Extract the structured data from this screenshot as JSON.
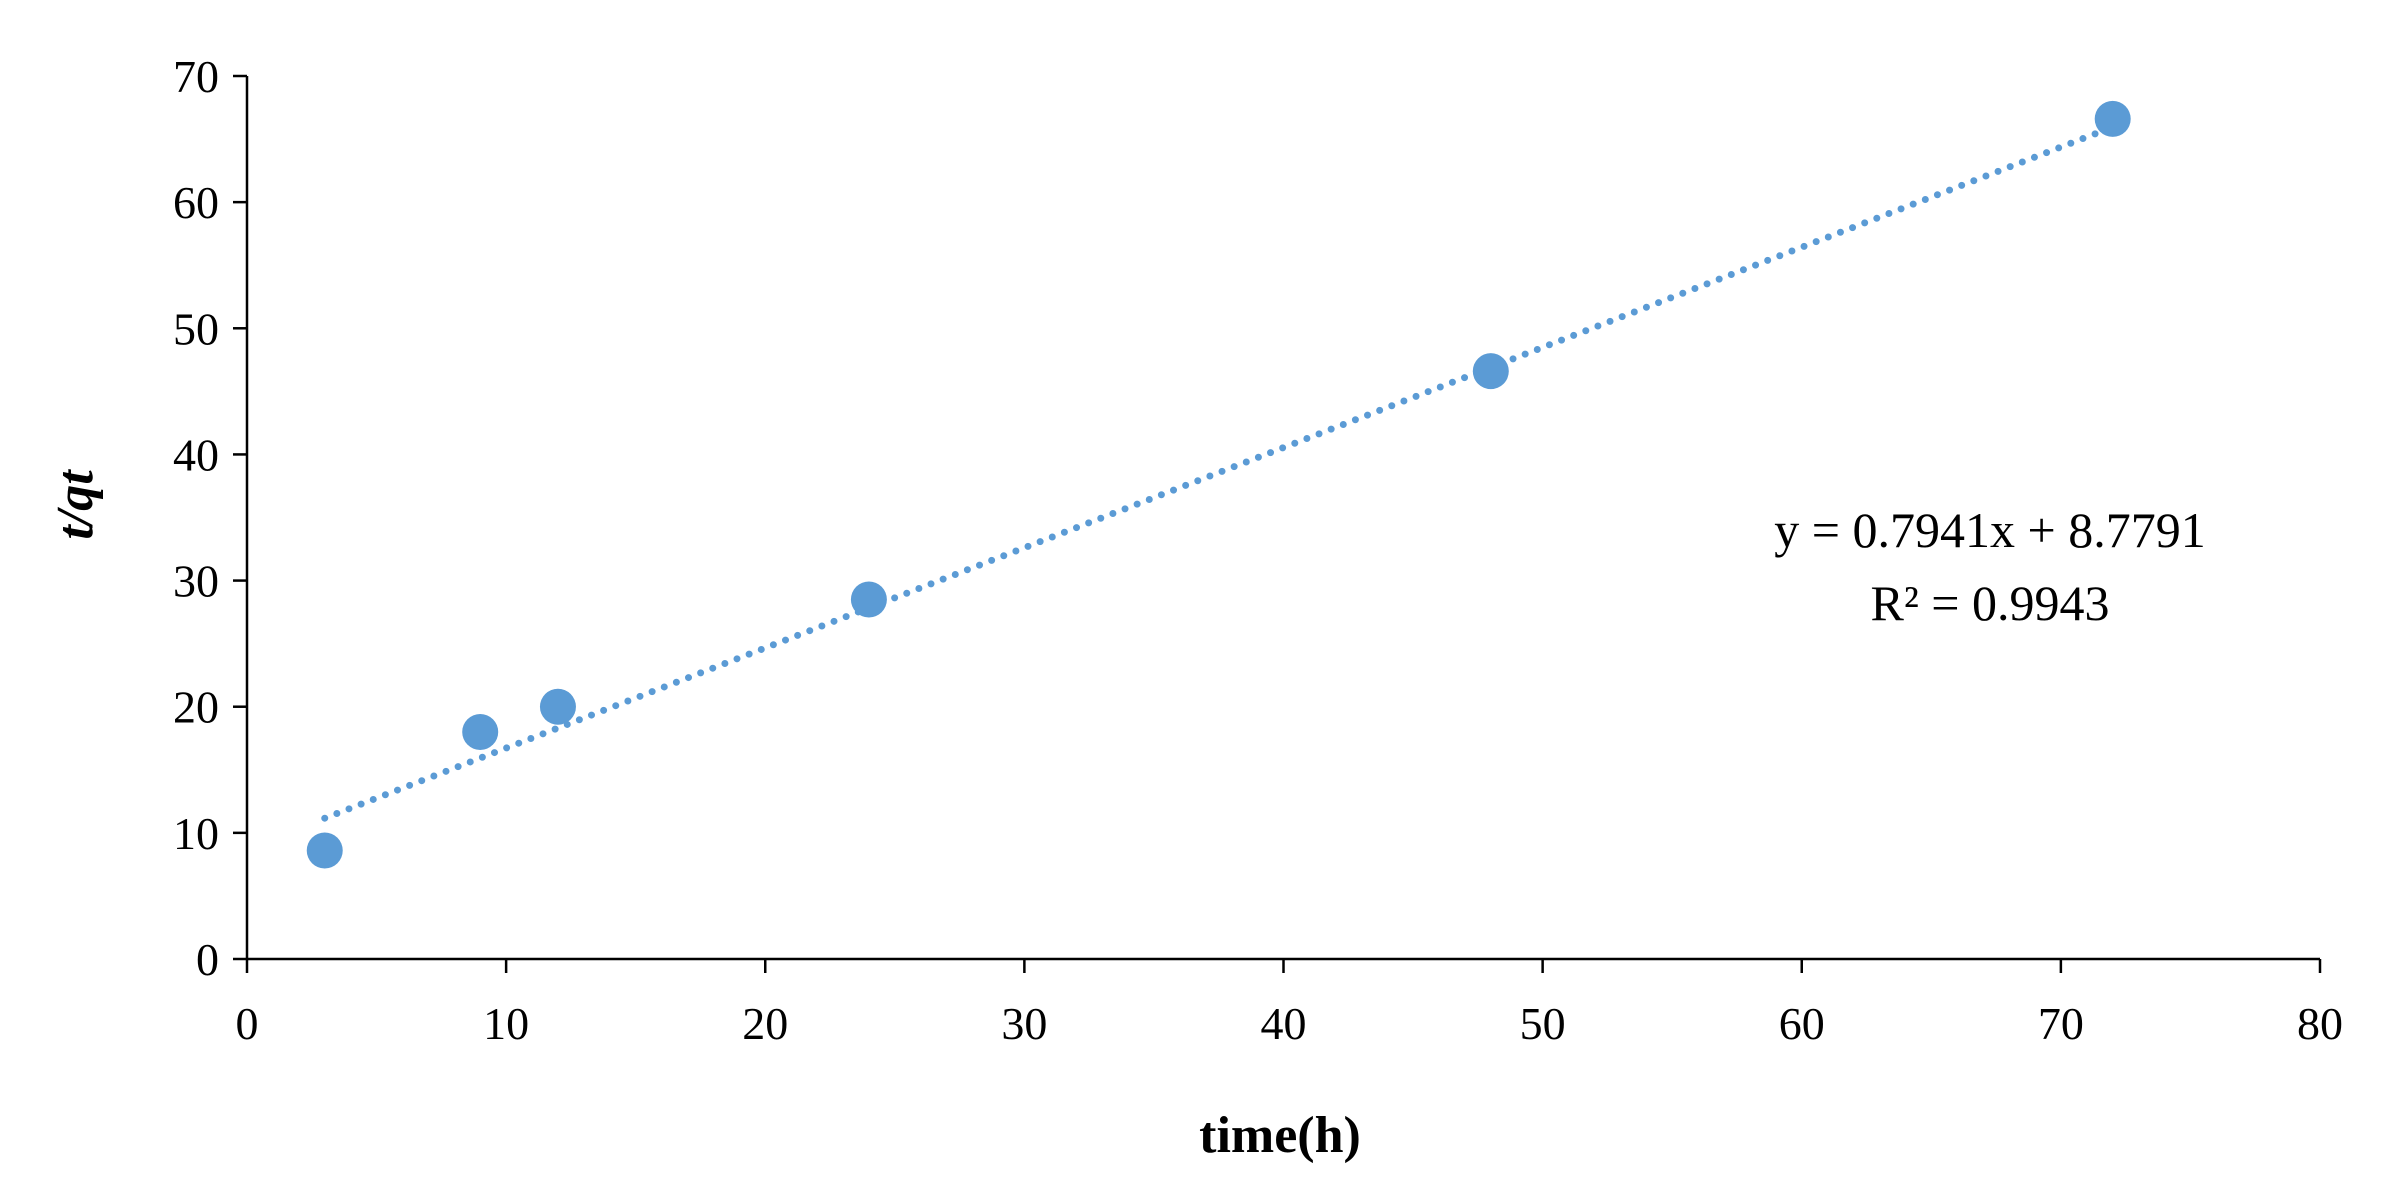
{
  "chart_data": {
    "type": "scatter",
    "xlabel": "time(h)",
    "ylabel": "t/qt",
    "xlim": [
      0,
      80
    ],
    "ylim": [
      0,
      70
    ],
    "x_ticks": [
      0,
      10,
      20,
      30,
      40,
      50,
      60,
      70,
      80
    ],
    "y_ticks": [
      0,
      10,
      20,
      30,
      40,
      50,
      60,
      70
    ],
    "grid": false,
    "series": [
      {
        "x": [
          3,
          9,
          12,
          24,
          48,
          72
        ],
        "y": [
          8.6,
          18.0,
          20.0,
          28.5,
          46.6,
          66.6
        ],
        "color": "#5B9BD5"
      }
    ],
    "trendline": {
      "style": "dotted",
      "color": "#5B9BD5",
      "slope": 0.7941,
      "intercept": 8.7791,
      "x_range": [
        3,
        72
      ]
    },
    "annotations": {
      "equation": "y = 0.7941x + 8.7791",
      "r_squared": "R² = 0.9943"
    }
  }
}
